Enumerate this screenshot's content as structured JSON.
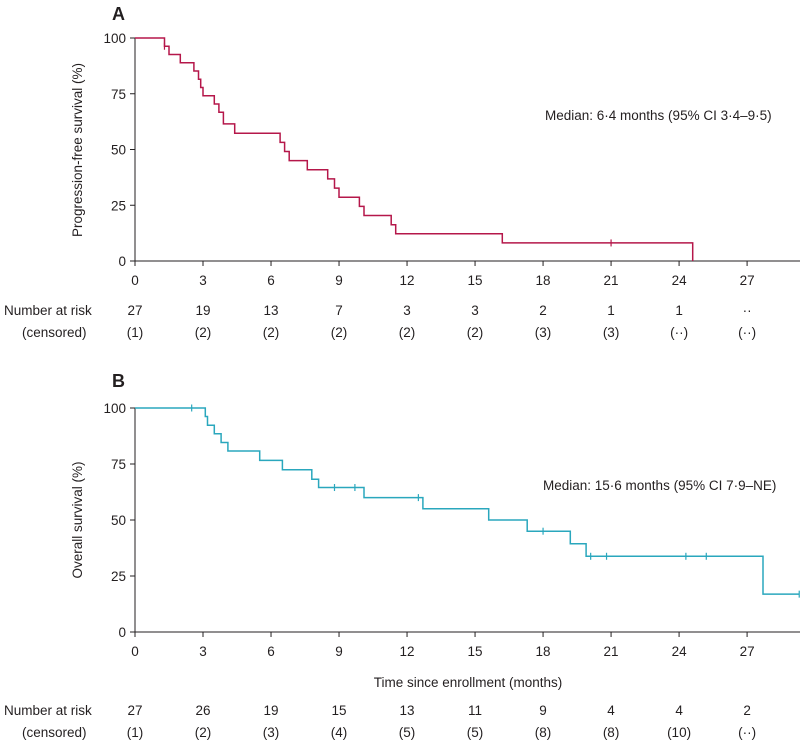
{
  "chart_data": [
    {
      "type": "line",
      "panel": "A",
      "title": "",
      "xlabel": "",
      "ylabel": "Progression-free survival (%)",
      "xlim": [
        0,
        29.5
      ],
      "ylim": [
        0,
        100
      ],
      "xticks": [
        0,
        3,
        6,
        9,
        12,
        15,
        18,
        21,
        24,
        27
      ],
      "yticks": [
        0,
        25,
        50,
        75,
        100
      ],
      "color": "#b5174a",
      "annotation": "Median: 6·4 months (95% CI 3·4–9·5)",
      "series": [
        {
          "name": "Progression-free survival",
          "steps": [
            [
              0,
              100
            ],
            [
              1.3,
              96.3
            ],
            [
              1.5,
              92.6
            ],
            [
              2.0,
              88.9
            ],
            [
              2.6,
              85.2
            ],
            [
              2.8,
              81.5
            ],
            [
              2.9,
              77.8
            ],
            [
              3.0,
              74.1
            ],
            [
              3.5,
              70.4
            ],
            [
              3.7,
              66.7
            ],
            [
              3.9,
              61.5
            ],
            [
              4.4,
              57.3
            ],
            [
              6.4,
              53.2
            ],
            [
              6.6,
              49.1
            ],
            [
              6.8,
              45.0
            ],
            [
              7.6,
              40.9
            ],
            [
              8.5,
              36.8
            ],
            [
              8.8,
              32.7
            ],
            [
              9.0,
              28.6
            ],
            [
              9.9,
              24.5
            ],
            [
              10.1,
              20.4
            ],
            [
              11.3,
              16.3
            ],
            [
              11.5,
              12.2
            ],
            [
              16.2,
              8.1
            ],
            [
              24.6,
              0
            ]
          ],
          "censored": [
            [
              1.3,
              96.3
            ],
            [
              21.0,
              8.1
            ]
          ]
        }
      ],
      "risk_table": {
        "title": "Number at risk",
        "subtitle": "(censored)",
        "times": [
          0,
          3,
          6,
          9,
          12,
          15,
          18,
          21,
          24,
          27
        ],
        "at_risk": [
          "27",
          "19",
          "13",
          "7",
          "3",
          "3",
          "2",
          "1",
          "1",
          "··"
        ],
        "censored": [
          "(1)",
          "(2)",
          "(2)",
          "(2)",
          "(2)",
          "(2)",
          "(3)",
          "(3)",
          "(··)",
          "(··)"
        ]
      }
    },
    {
      "type": "line",
      "panel": "B",
      "title": "",
      "xlabel": "Time since enrollment (months)",
      "ylabel": "Overall survival (%)",
      "xlim": [
        0,
        29.5
      ],
      "ylim": [
        0,
        100
      ],
      "xticks": [
        0,
        3,
        6,
        9,
        12,
        15,
        18,
        21,
        24,
        27
      ],
      "yticks": [
        0,
        25,
        50,
        75,
        100
      ],
      "color": "#2aa7bd",
      "annotation": "Median: 15·6 months (95% CI 7·9–NE)",
      "series": [
        {
          "name": "Overall survival",
          "steps": [
            [
              0,
              100
            ],
            [
              3.1,
              96.2
            ],
            [
              3.2,
              92.3
            ],
            [
              3.5,
              88.5
            ],
            [
              3.8,
              84.6
            ],
            [
              4.1,
              80.8
            ],
            [
              5.5,
              76.6
            ],
            [
              6.5,
              72.4
            ],
            [
              7.8,
              68.2
            ],
            [
              8.1,
              64.5
            ],
            [
              10.1,
              60.0
            ],
            [
              12.7,
              55.0
            ],
            [
              15.6,
              50.0
            ],
            [
              17.3,
              45.0
            ],
            [
              19.2,
              39.4
            ],
            [
              19.9,
              33.8
            ],
            [
              27.7,
              16.9
            ]
          ],
          "censored": [
            [
              2.5,
              100
            ],
            [
              8.8,
              64.5
            ],
            [
              9.7,
              64.5
            ],
            [
              12.5,
              60.0
            ],
            [
              18.0,
              45.0
            ],
            [
              20.1,
              33.8
            ],
            [
              20.8,
              33.8
            ],
            [
              24.3,
              33.8
            ],
            [
              25.2,
              33.8
            ],
            [
              29.3,
              16.9
            ]
          ]
        }
      ],
      "risk_table": {
        "title": "Number at risk",
        "subtitle": "(censored)",
        "times": [
          0,
          3,
          6,
          9,
          12,
          15,
          18,
          21,
          24,
          27
        ],
        "at_risk": [
          "27",
          "26",
          "19",
          "15",
          "13",
          "11",
          "9",
          "4",
          "4",
          "2"
        ],
        "censored": [
          "(1)",
          "(2)",
          "(3)",
          "(4)",
          "(5)",
          "(5)",
          "(8)",
          "(8)",
          "(10)",
          "(··)"
        ]
      }
    }
  ]
}
